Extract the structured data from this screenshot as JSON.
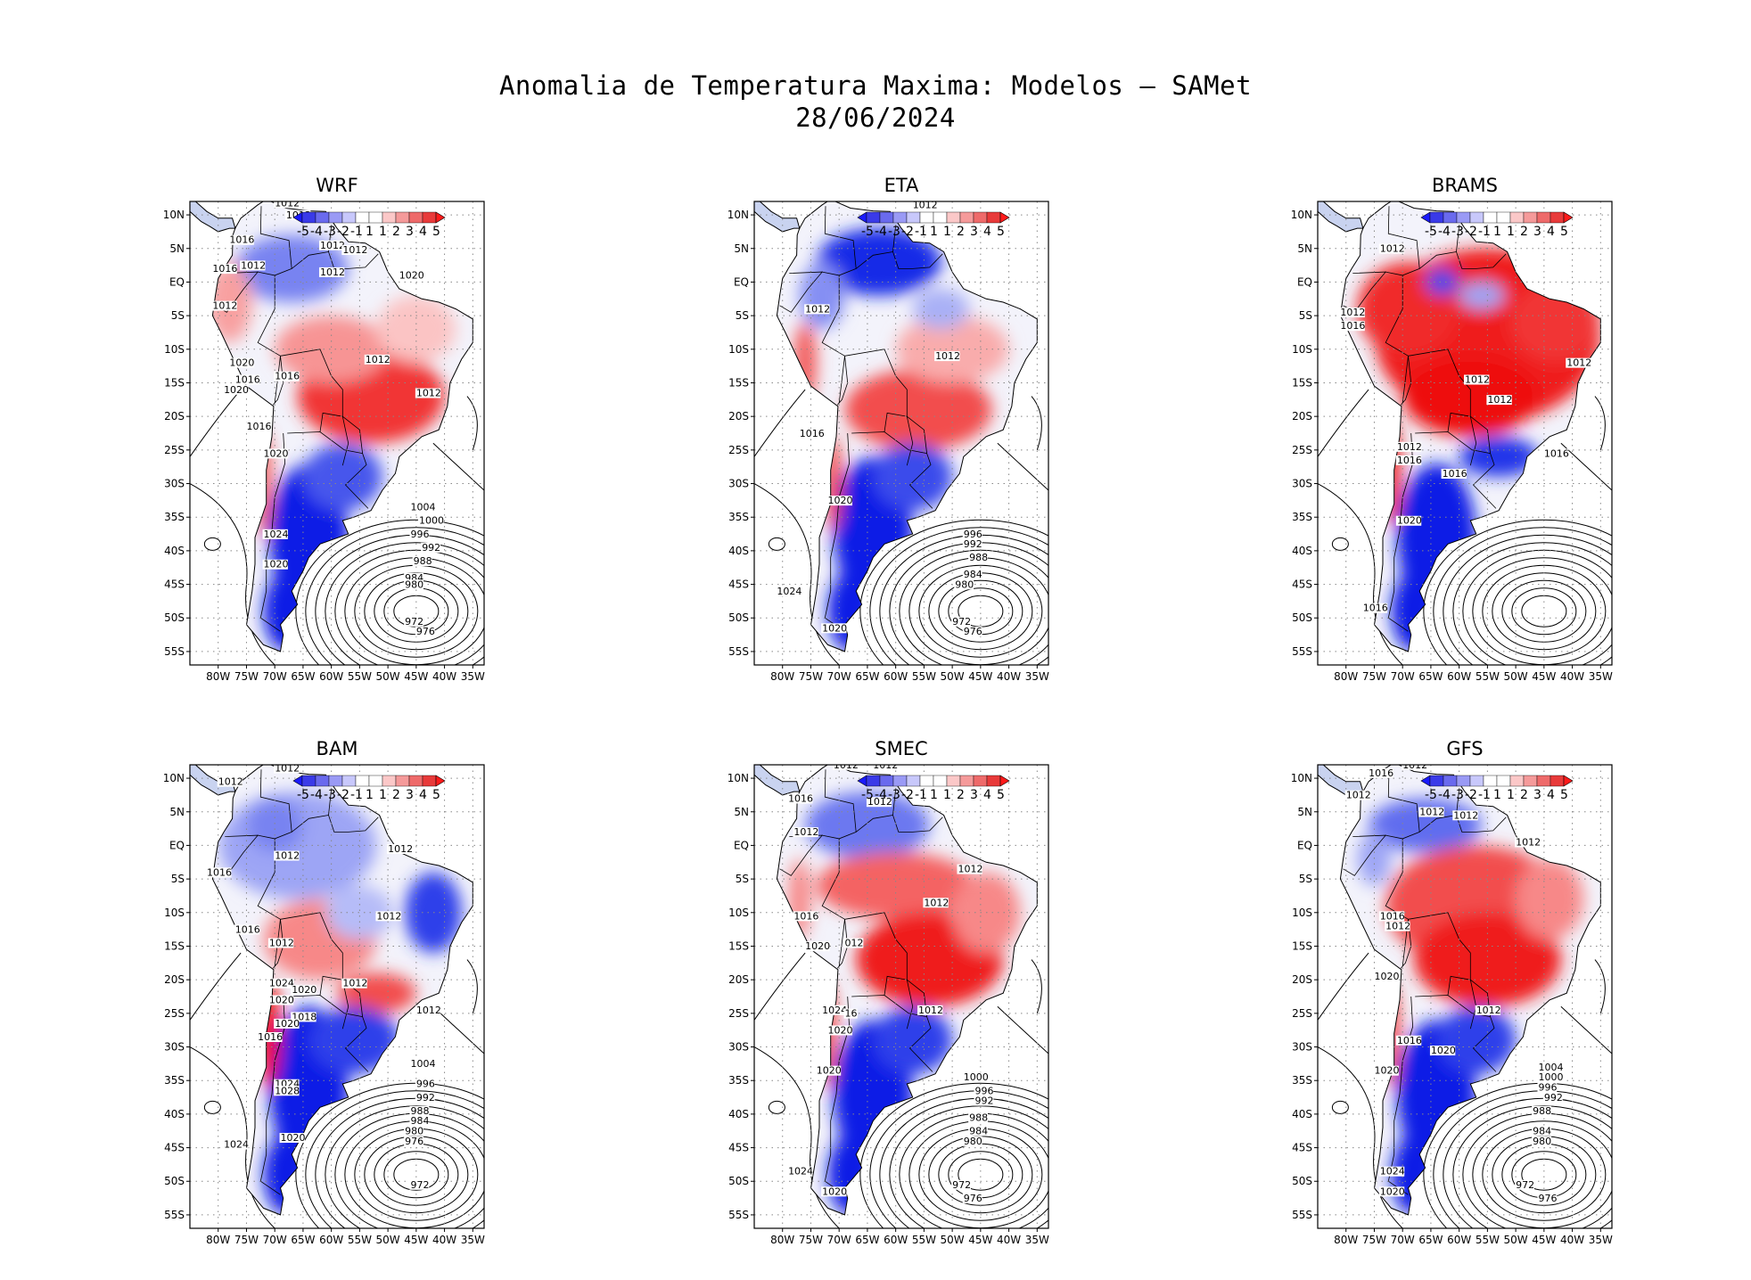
{
  "title": {
    "line1": "Anomalia de Temperatura Maxima: Modelos – SAMet",
    "line2": "28/06/2024"
  },
  "lat_labels": [
    "10N",
    "5N",
    "EQ",
    "5S",
    "10S",
    "15S",
    "20S",
    "25S",
    "30S",
    "35S",
    "40S",
    "45S",
    "50S",
    "55S"
  ],
  "lon_labels": [
    "80W",
    "75W",
    "70W",
    "65W",
    "60W",
    "55W",
    "50W",
    "45W",
    "40W",
    "35W"
  ],
  "colorbar_labels": [
    "-5",
    "-4",
    "-3",
    "-2",
    "-1",
    "1",
    "1",
    "2",
    "3",
    "4",
    "5"
  ],
  "colors": {
    "cold": "#0a1ee6",
    "warm": "#ee1111",
    "contour": "#000000",
    "grid": "#888888"
  },
  "panels": [
    {
      "name": "WRF",
      "isobars": [
        "1012",
        "1012",
        "1016",
        "1012",
        "1012",
        "1012",
        "1016",
        "1012",
        "1020",
        "1012",
        "1012",
        "1020",
        "1016",
        "1016",
        "1020",
        "1012",
        "1016",
        "1020",
        "1004",
        "1000",
        "1024",
        "996",
        "992",
        "988",
        "1020",
        "984",
        "980",
        "972",
        "976"
      ]
    },
    {
      "name": "ETA",
      "isobars": [
        "1012",
        "1012",
        "1012",
        "1016",
        "1012",
        "1020",
        "996",
        "992",
        "988",
        "984",
        "980",
        "1024",
        "972",
        "1020",
        "976"
      ]
    },
    {
      "name": "BRAMS",
      "isobars": [
        "1012",
        "1012",
        "1016",
        "1012",
        "1012",
        "1012",
        "1012",
        "1016",
        "1016",
        "1016",
        "1020",
        "1016"
      ]
    },
    {
      "name": "BAM",
      "isobars": [
        "1012",
        "1012",
        "1012",
        "1012",
        "1016",
        "1016",
        "1012",
        "1012",
        "1012",
        "1024",
        "1020",
        "1020",
        "1012",
        "1018",
        "1020",
        "1016",
        "1004",
        "1024",
        "996",
        "1028",
        "992",
        "988",
        "984",
        "980",
        "1020",
        "976",
        "1024",
        "972"
      ]
    },
    {
      "name": "SMEC",
      "isobars": [
        "1012",
        "1012",
        "1016",
        "1012",
        "1012",
        "1012",
        "1012",
        "1016",
        "1020",
        "012",
        "1012",
        "1024",
        "16",
        "1020",
        "1020",
        "1000",
        "996",
        "992",
        "988",
        "984",
        "980",
        "1024",
        "972",
        "1020",
        "976"
      ]
    },
    {
      "name": "GFS",
      "isobars": [
        "1012",
        "1016",
        "1012",
        "1012",
        "1012",
        "1012",
        "1012",
        "1016",
        "1012",
        "1020",
        "1012",
        "1016",
        "1020",
        "1020",
        "1004",
        "1000",
        "996",
        "992",
        "988",
        "984",
        "980",
        "1024",
        "972",
        "1020",
        "976"
      ]
    }
  ]
}
